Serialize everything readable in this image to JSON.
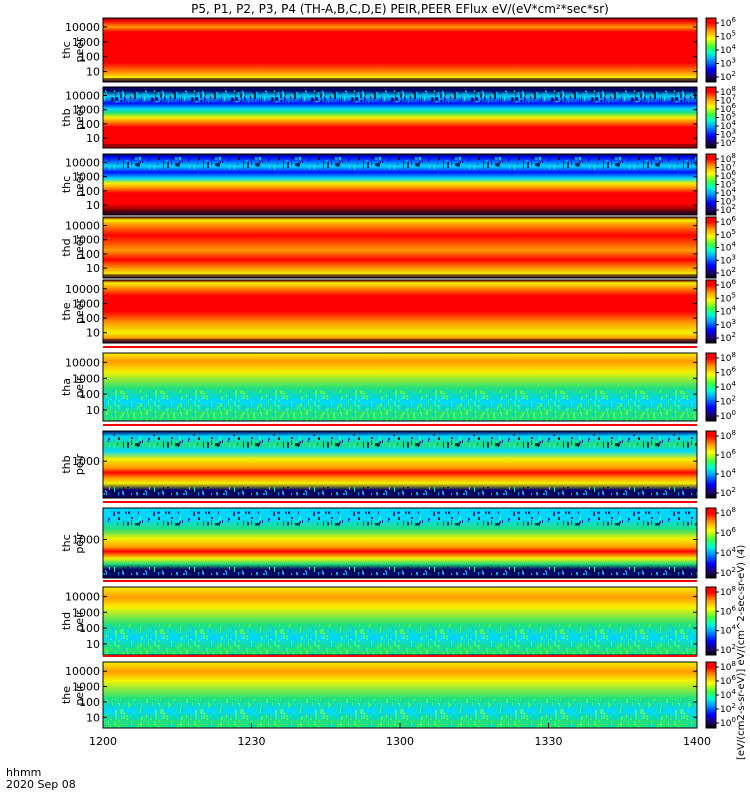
{
  "title": "P5, P1, P2, P3, P4 (TH-A,B,C,D,E) PEIR,PEER EFlux eV/(eV*cm²*sec*sr)",
  "colorbar_label": "[eV/(cm2-s-sr-eV)] · eV/(cm²*sec*sr*eV) (dual labels overlapping)",
  "colorbar_label_display": "[eV/(cm2-s-sr-eV)]  eV/(cm^2-sec-sr-eV)  (4)",
  "footer": {
    "time_label": "hhmm",
    "date_label": "2020 Sep 08"
  },
  "x_ticks": [
    "1200",
    "1230",
    "1300",
    "1330",
    "1400"
  ],
  "colors": {
    "red": "#ff0000",
    "orange": "#ff9a00",
    "yellow": "#f5f200",
    "green": "#22e07a",
    "cyan": "#00d8ff",
    "blue": "#0010ff",
    "navy": "#000060",
    "dark_red": "#800000"
  },
  "chart_data": [
    {
      "type": "heatmap",
      "probe": "thc",
      "species": "peer",
      "y_ticks": [
        "10000",
        "1000",
        "100",
        "10"
      ],
      "cbar_ticks": [
        "10^6",
        "10^5",
        "10^4",
        "10^3",
        "10^2"
      ],
      "profile": [
        [
          "dark_red",
          0.0
        ],
        [
          "red",
          0.05
        ],
        [
          "orange",
          0.14
        ],
        [
          "red",
          0.22
        ],
        [
          "red",
          0.7
        ],
        [
          "orange",
          0.86
        ],
        [
          "yellow",
          0.93
        ],
        [
          "navy",
          1.0
        ]
      ],
      "noise": "none"
    },
    {
      "type": "heatmap",
      "probe": "thb",
      "species": "peer",
      "y_ticks": [
        "10000",
        "1000",
        "100",
        "10"
      ],
      "cbar_ticks": [
        "10^8",
        "10^7",
        "10^6",
        "10^5",
        "10^4",
        "10^3",
        "10^2"
      ],
      "profile": [
        [
          "navy",
          0.0
        ],
        [
          "navy",
          0.06
        ],
        [
          "cyan",
          0.15
        ],
        [
          "blue",
          0.27
        ],
        [
          "cyan",
          0.36
        ],
        [
          "green",
          0.42
        ],
        [
          "yellow",
          0.5
        ],
        [
          "orange",
          0.56
        ],
        [
          "red",
          0.66
        ],
        [
          "red",
          1.0
        ]
      ],
      "noise": "top"
    },
    {
      "type": "heatmap",
      "probe": "thc",
      "species": "peer",
      "y_ticks": [
        "10000",
        "1000",
        "100",
        "10"
      ],
      "cbar_ticks": [
        "10^8",
        "10^7",
        "10^6",
        "10^5",
        "10^4",
        "10^3",
        "10^2"
      ],
      "profile": [
        [
          "navy",
          0.0
        ],
        [
          "blue",
          0.06
        ],
        [
          "cyan",
          0.2
        ],
        [
          "blue",
          0.3
        ],
        [
          "cyan",
          0.4
        ],
        [
          "yellow",
          0.48
        ],
        [
          "orange",
          0.55
        ],
        [
          "red",
          0.64
        ],
        [
          "red",
          0.82
        ],
        [
          "dark_red",
          0.92
        ],
        [
          "navy",
          1.0
        ]
      ],
      "noise": "top"
    },
    {
      "type": "heatmap",
      "probe": "thd",
      "species": "peer",
      "y_ticks": [
        "10000",
        "1000",
        "100",
        "10"
      ],
      "cbar_ticks": [
        "10^6",
        "10^5",
        "10^4",
        "10^3",
        "10^2"
      ],
      "profile": [
        [
          "dark_red",
          0.0
        ],
        [
          "yellow",
          0.05
        ],
        [
          "orange",
          0.12
        ],
        [
          "red",
          0.3
        ],
        [
          "orange",
          0.55
        ],
        [
          "red",
          0.7
        ],
        [
          "orange",
          0.84
        ],
        [
          "yellow",
          0.94
        ],
        [
          "navy",
          1.0
        ]
      ],
      "noise": "none"
    },
    {
      "type": "heatmap",
      "probe": "the",
      "species": "peer",
      "y_ticks": [
        "10000",
        "1000",
        "100",
        "10"
      ],
      "cbar_ticks": [
        "10^6",
        "10^5",
        "10^4",
        "10^3",
        "10^2"
      ],
      "profile": [
        [
          "dark_red",
          0.0
        ],
        [
          "yellow",
          0.05
        ],
        [
          "orange",
          0.12
        ],
        [
          "red",
          0.25
        ],
        [
          "red",
          0.5
        ],
        [
          "orange",
          0.68
        ],
        [
          "yellow",
          0.84
        ],
        [
          "orange",
          0.92
        ],
        [
          "navy",
          1.0
        ]
      ],
      "noise": "none"
    },
    {
      "type": "heatmap",
      "probe": "tha",
      "species": "peir",
      "y_ticks": [
        "10000",
        "1000",
        "100",
        "10"
      ],
      "cbar_ticks": [
        "10^8",
        "10^6",
        "10^4",
        "10^2",
        "10^0"
      ],
      "profile": [
        [
          "yellow",
          0.0
        ],
        [
          "orange",
          0.12
        ],
        [
          "yellow",
          0.28
        ],
        [
          "green",
          0.52
        ],
        [
          "cyan",
          0.72
        ],
        [
          "green",
          0.88
        ],
        [
          "green",
          1.0
        ]
      ],
      "noise": "speckle"
    },
    {
      "type": "heatmap",
      "probe": "thb",
      "species": "peir",
      "y_ticks": [
        "1000"
      ],
      "cbar_ticks": [
        "10^8",
        "10^6",
        "10^4",
        "10^2"
      ],
      "profile": [
        [
          "navy",
          0.0
        ],
        [
          "cyan",
          0.08
        ],
        [
          "green",
          0.2
        ],
        [
          "cyan",
          0.3
        ],
        [
          "yellow",
          0.42
        ],
        [
          "orange",
          0.55
        ],
        [
          "red",
          0.62
        ],
        [
          "orange",
          0.7
        ],
        [
          "yellow",
          0.78
        ],
        [
          "navy",
          0.88
        ],
        [
          "navy",
          1.0
        ]
      ],
      "noise": "both"
    },
    {
      "type": "heatmap",
      "probe": "thc",
      "species": "peir",
      "y_ticks": [
        "1000"
      ],
      "cbar_ticks": [
        "10^8",
        "10^6",
        "10^4",
        "10^2"
      ],
      "profile": [
        [
          "cyan",
          0.0
        ],
        [
          "cyan",
          0.15
        ],
        [
          "green",
          0.3
        ],
        [
          "yellow",
          0.44
        ],
        [
          "orange",
          0.56
        ],
        [
          "red",
          0.62
        ],
        [
          "yellow",
          0.72
        ],
        [
          "green",
          0.8
        ],
        [
          "navy",
          0.88
        ],
        [
          "navy",
          1.0
        ]
      ],
      "noise": "both"
    },
    {
      "type": "heatmap",
      "probe": "thd",
      "species": "peir",
      "y_ticks": [
        "10000",
        "1000",
        "100",
        "10"
      ],
      "cbar_ticks": [
        "10^8",
        "10^6",
        "10^4",
        "10^2"
      ],
      "profile": [
        [
          "yellow",
          0.0
        ],
        [
          "orange",
          0.15
        ],
        [
          "yellow",
          0.3
        ],
        [
          "green",
          0.55
        ],
        [
          "cyan",
          0.75
        ],
        [
          "green",
          0.9
        ],
        [
          "green",
          1.0
        ]
      ],
      "noise": "speckle"
    },
    {
      "type": "heatmap",
      "probe": "the",
      "species": "peir",
      "y_ticks": [
        "10000",
        "1000",
        "100",
        "10"
      ],
      "cbar_ticks": [
        "10^8",
        "10^6",
        "10^4",
        "10^2",
        "10^0"
      ],
      "profile": [
        [
          "yellow",
          0.0
        ],
        [
          "orange",
          0.15
        ],
        [
          "yellow",
          0.28
        ],
        [
          "green",
          0.55
        ],
        [
          "cyan",
          0.75
        ],
        [
          "green",
          0.9
        ],
        [
          "green",
          1.0
        ]
      ],
      "noise": "speckle"
    }
  ]
}
